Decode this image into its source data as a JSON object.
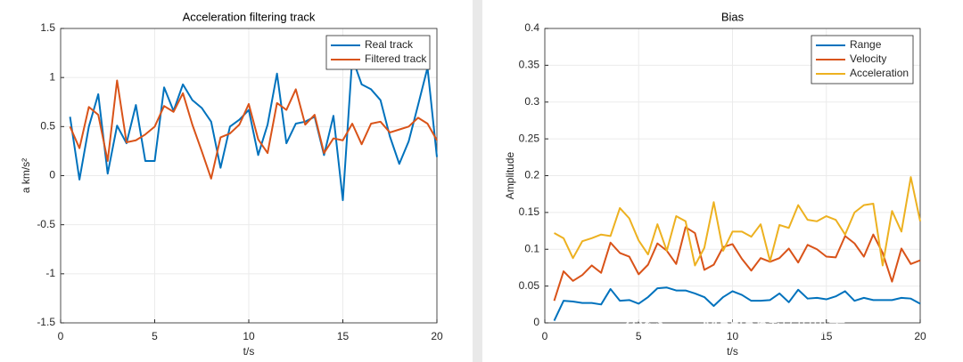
{
  "chart_data": [
    {
      "type": "line",
      "title": "Acceleration filtering track",
      "xlabel": "t/s",
      "ylabel": "a km/s²",
      "x": [
        0.5,
        1,
        1.5,
        2,
        2.5,
        3,
        3.5,
        4,
        4.5,
        5,
        5.5,
        6,
        6.5,
        7,
        7.5,
        8,
        8.5,
        9,
        9.5,
        10,
        10.5,
        11,
        11.5,
        12,
        12.5,
        13,
        13.5,
        14,
        14.5,
        15,
        15.5,
        16,
        16.5,
        17,
        17.5,
        18,
        18.5,
        19,
        19.5,
        20
      ],
      "series": [
        {
          "name": "Real track",
          "color": "#0072bd",
          "values": [
            0.6,
            -0.04,
            0.5,
            0.83,
            0.02,
            0.51,
            0.33,
            0.72,
            0.15,
            0.15,
            0.9,
            0.66,
            0.93,
            0.77,
            0.69,
            0.55,
            0.08,
            0.5,
            0.57,
            0.67,
            0.21,
            0.52,
            1.04,
            0.33,
            0.53,
            0.55,
            0.6,
            0.21,
            0.61,
            -0.25,
            1.2,
            0.93,
            0.88,
            0.77,
            0.4,
            0.12,
            0.35,
            0.72,
            1.1,
            0.19
          ]
        },
        {
          "name": "Filtered track",
          "color": "#d95319",
          "values": [
            0.5,
            0.28,
            0.7,
            0.62,
            0.15,
            0.97,
            0.34,
            0.36,
            0.42,
            0.5,
            0.71,
            0.65,
            0.84,
            0.52,
            0.25,
            -0.03,
            0.39,
            0.43,
            0.52,
            0.73,
            0.37,
            0.23,
            0.74,
            0.67,
            0.88,
            0.52,
            0.62,
            0.23,
            0.38,
            0.36,
            0.53,
            0.32,
            0.53,
            0.55,
            0.44,
            0.47,
            0.5,
            0.59,
            0.53,
            0.36
          ]
        }
      ],
      "xlim": [
        0,
        20
      ],
      "ylim": [
        -1.5,
        1.5
      ],
      "xticks": [
        0,
        5,
        10,
        15,
        20
      ],
      "yticks": [
        -1.5,
        -1,
        -0.5,
        0,
        0.5,
        1,
        1.5
      ],
      "grid": true,
      "legend": "upper right"
    },
    {
      "type": "line",
      "title": "Bias",
      "xlabel": "t/s",
      "ylabel": "Amplitude",
      "x": [
        0.5,
        1,
        1.5,
        2,
        2.5,
        3,
        3.5,
        4,
        4.5,
        5,
        5.5,
        6,
        6.5,
        7,
        7.5,
        8,
        8.5,
        9,
        9.5,
        10,
        10.5,
        11,
        11.5,
        12,
        12.5,
        13,
        13.5,
        14,
        14.5,
        15,
        15.5,
        16,
        16.5,
        17,
        17.5,
        18,
        18.5,
        19,
        19.5,
        20
      ],
      "series": [
        {
          "name": "Range",
          "color": "#0072bd",
          "values": [
            0.003,
            0.03,
            0.029,
            0.027,
            0.027,
            0.025,
            0.046,
            0.03,
            0.031,
            0.026,
            0.035,
            0.047,
            0.048,
            0.044,
            0.044,
            0.04,
            0.035,
            0.023,
            0.035,
            0.043,
            0.038,
            0.03,
            0.03,
            0.031,
            0.04,
            0.028,
            0.045,
            0.033,
            0.034,
            0.032,
            0.036,
            0.043,
            0.03,
            0.034,
            0.031,
            0.031,
            0.031,
            0.034,
            0.033,
            0.026
          ]
        },
        {
          "name": "Velocity",
          "color": "#d95319",
          "values": [
            0.03,
            0.07,
            0.057,
            0.065,
            0.078,
            0.068,
            0.109,
            0.095,
            0.09,
            0.066,
            0.079,
            0.108,
            0.098,
            0.08,
            0.13,
            0.122,
            0.072,
            0.079,
            0.103,
            0.107,
            0.087,
            0.071,
            0.088,
            0.083,
            0.088,
            0.101,
            0.082,
            0.106,
            0.1,
            0.09,
            0.089,
            0.118,
            0.108,
            0.09,
            0.12,
            0.095,
            0.056,
            0.101,
            0.08,
            0.085
          ]
        },
        {
          "name": "Acceleration",
          "color": "#edb120",
          "values": [
            0.122,
            0.115,
            0.088,
            0.111,
            0.115,
            0.12,
            0.118,
            0.156,
            0.142,
            0.112,
            0.093,
            0.134,
            0.098,
            0.145,
            0.138,
            0.078,
            0.102,
            0.164,
            0.098,
            0.124,
            0.124,
            0.117,
            0.134,
            0.084,
            0.133,
            0.129,
            0.16,
            0.14,
            0.138,
            0.145,
            0.14,
            0.12,
            0.15,
            0.16,
            0.162,
            0.078,
            0.152,
            0.124,
            0.198,
            0.138
          ]
        }
      ],
      "xlim": [
        0,
        20
      ],
      "ylim": [
        0,
        0.4
      ],
      "xticks": [
        0,
        5,
        10,
        15,
        20
      ],
      "yticks": [
        0,
        0.05,
        0.1,
        0.15,
        0.2,
        0.25,
        0.3,
        0.35,
        0.4
      ],
      "grid": true,
      "legend": "upper right"
    }
  ],
  "watermark": "公众号 · Matlab科研助手"
}
